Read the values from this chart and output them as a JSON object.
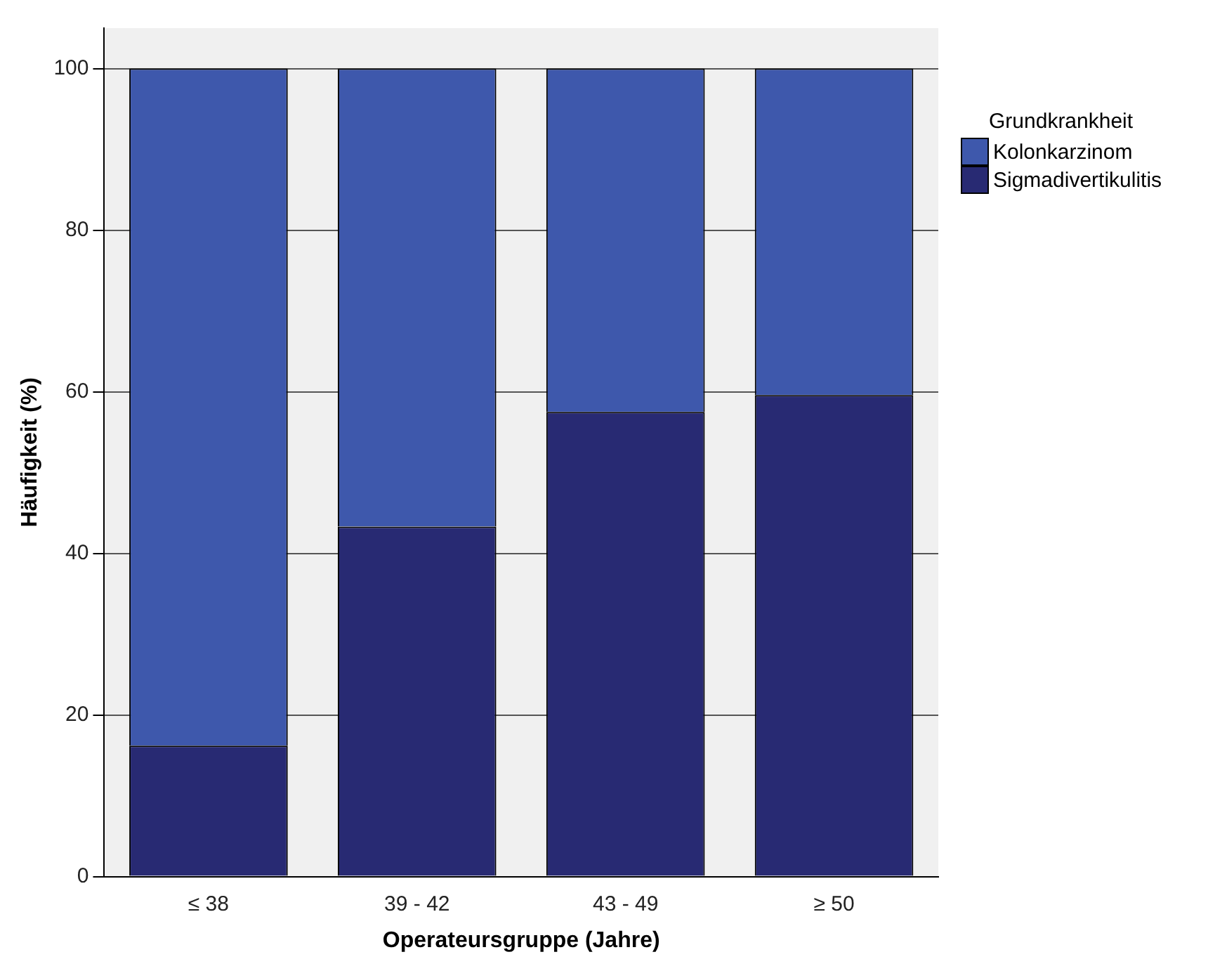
{
  "chart_data": {
    "type": "bar",
    "xlabel": "Operateursgruppe (Jahre)",
    "ylabel": "Häufigkeit (%)",
    "legend_title": "Grundkrankheit",
    "categories": [
      "≤ 38",
      "39 - 42",
      "43 - 49",
      "≥ 50"
    ],
    "series": [
      {
        "name": "Sigmadivertikulitis",
        "color": "#282a73",
        "values": [
          16.2,
          43.3,
          57.5,
          59.6
        ]
      },
      {
        "name": "Kolonkarzinom",
        "color": "#3e58ac",
        "values": [
          83.8,
          56.7,
          42.5,
          40.4
        ]
      }
    ],
    "stacked": true,
    "ylim": [
      0,
      105
    ],
    "yticks": [
      0,
      20,
      40,
      60,
      80,
      100
    ],
    "grid": "y",
    "legend": "top right"
  }
}
